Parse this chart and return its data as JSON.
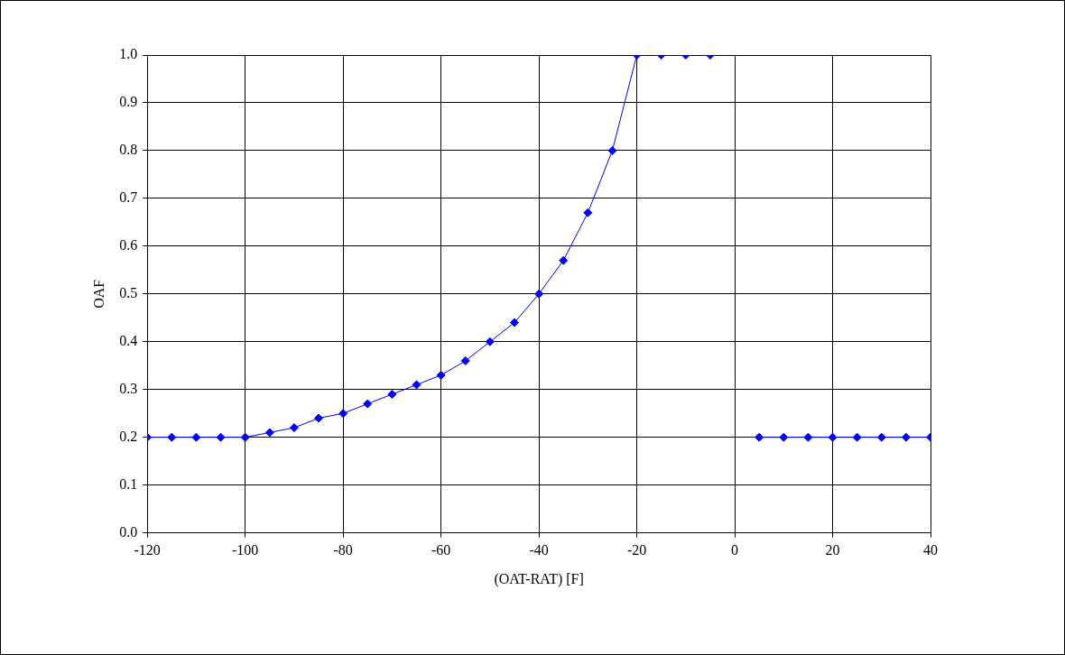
{
  "chart_data": {
    "type": "line",
    "xlabel": "(OAT-RAT) [F]",
    "ylabel": "OAF",
    "x": [
      -120,
      -115,
      -110,
      -105,
      -100,
      -95,
      -90,
      -85,
      -80,
      -75,
      -70,
      -65,
      -60,
      -55,
      -50,
      -45,
      -40,
      -35,
      -30,
      -25,
      -20,
      -15,
      -10,
      -5,
      0,
      5,
      10,
      15,
      20,
      25,
      30,
      35,
      40
    ],
    "series": [
      {
        "color": "#0000ff",
        "values": [
          0.2,
          0.2,
          0.2,
          0.2,
          0.2,
          0.21,
          0.22,
          0.24,
          0.25,
          0.27,
          0.29,
          0.31,
          0.33,
          0.36,
          0.4,
          0.44,
          0.5,
          0.57,
          0.67,
          0.8,
          1.0,
          1.0,
          1.0,
          1.0,
          null,
          0.2,
          0.2,
          0.2,
          0.2,
          0.2,
          0.2,
          0.2,
          0.2
        ]
      }
    ],
    "xlim": [
      -120,
      40
    ],
    "xticks": [
      -120,
      -100,
      -80,
      -60,
      -40,
      -20,
      0,
      20,
      40
    ],
    "ylim": [
      0,
      1
    ],
    "yticks": [
      {
        "value": 0,
        "label": "0.0"
      },
      0.1,
      0.2,
      0.3,
      0.4,
      0.5,
      0.6,
      0.7,
      0.8,
      0.9,
      {
        "value": 1,
        "label": "1.0"
      }
    ],
    "grid": true,
    "legend": false,
    "marker": "diamond",
    "line_style": "solid"
  }
}
